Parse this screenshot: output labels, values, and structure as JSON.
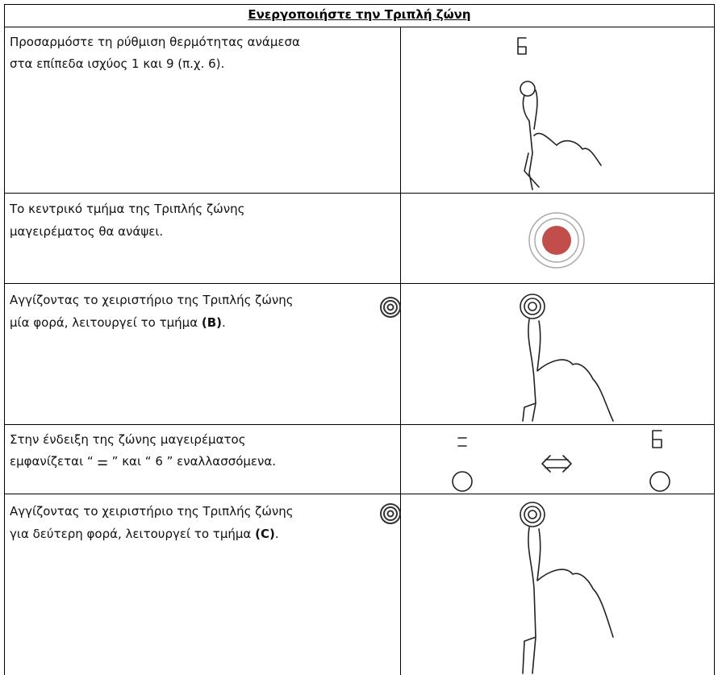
{
  "header": {
    "title": "Ενεργοποιήστε την Τριπλή ζώνη"
  },
  "rows": [
    {
      "lines": [
        "Προσαρμόστε τη ρύθμιση θερμότητας ανάμεσα",
        "στα επίπεδα ισχύος 1 και 9 (π.χ. 6)."
      ]
    },
    {
      "lines": [
        "Το κεντρικό τμήμα της Τριπλής ζώνης",
        "μαγειρέματος θα ανάψει."
      ]
    },
    {
      "line1": "Αγγίζοντας το χειριστήριο της Τριπλής ζώνης",
      "line2_before": "μία φορά, λειτουργεί το τμήμα ",
      "line2_bold": "(B)",
      "line2_after": "."
    },
    {
      "lines": [
        "Στην ένδειξη της ζώνης μαγειρέματος",
        "εμφανίζεται “ ⚌ ” και “ 6 ” εναλλασσόμενα."
      ]
    },
    {
      "line1": "Αγγίζοντας το χειριστήριο της Τριπλής ζώνης",
      "line2_before": "για δεύτερη φορά, λειτουργεί το τμήμα ",
      "line2_bold": "(C)",
      "line2_after": "."
    }
  ]
}
